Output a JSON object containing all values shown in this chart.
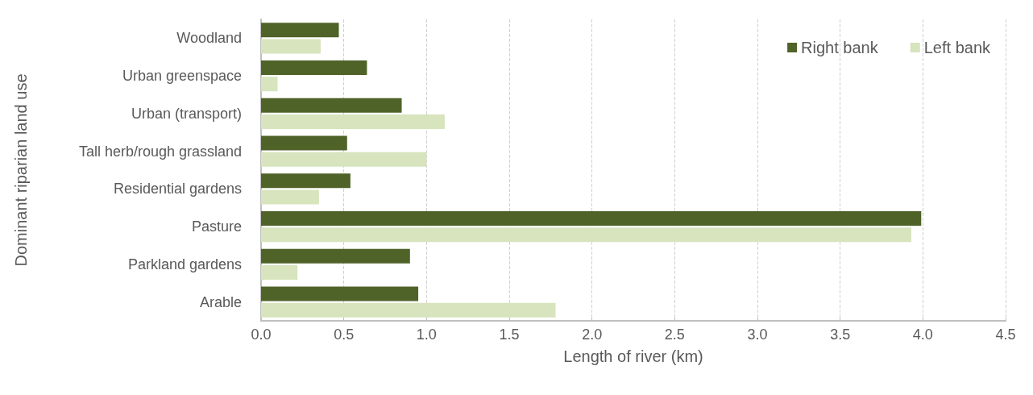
{
  "chart_data": {
    "type": "bar",
    "orientation": "horizontal",
    "xlabel": "Length of river (km)",
    "ylabel": "Dominant riparian land use",
    "categories": [
      "Woodland",
      "Urban greenspace",
      "Urban (transport)",
      "Tall herb/rough grassland",
      "Residential gardens",
      "Pasture",
      "Parkland gardens",
      "Arable"
    ],
    "series": [
      {
        "name": "Right bank",
        "color": "#4f6228",
        "values": [
          0.47,
          0.64,
          0.85,
          0.52,
          0.54,
          3.99,
          0.9,
          0.95
        ]
      },
      {
        "name": "Left bank",
        "color": "#d7e4bd",
        "values": [
          0.36,
          0.1,
          1.11,
          1.0,
          0.35,
          3.93,
          0.22,
          1.78
        ]
      }
    ],
    "xlim": [
      0,
      4.5
    ],
    "xticks": [
      {
        "value": 0,
        "label": "0.0"
      },
      0.5,
      {
        "value": 1,
        "label": "1.0"
      },
      1.5,
      {
        "value": 2,
        "label": "2.0"
      },
      2.5,
      {
        "value": 3,
        "label": "3.0"
      },
      3.5,
      {
        "value": 4,
        "label": "4.0"
      },
      4.5
    ],
    "grid": "x",
    "legend": "top right"
  }
}
